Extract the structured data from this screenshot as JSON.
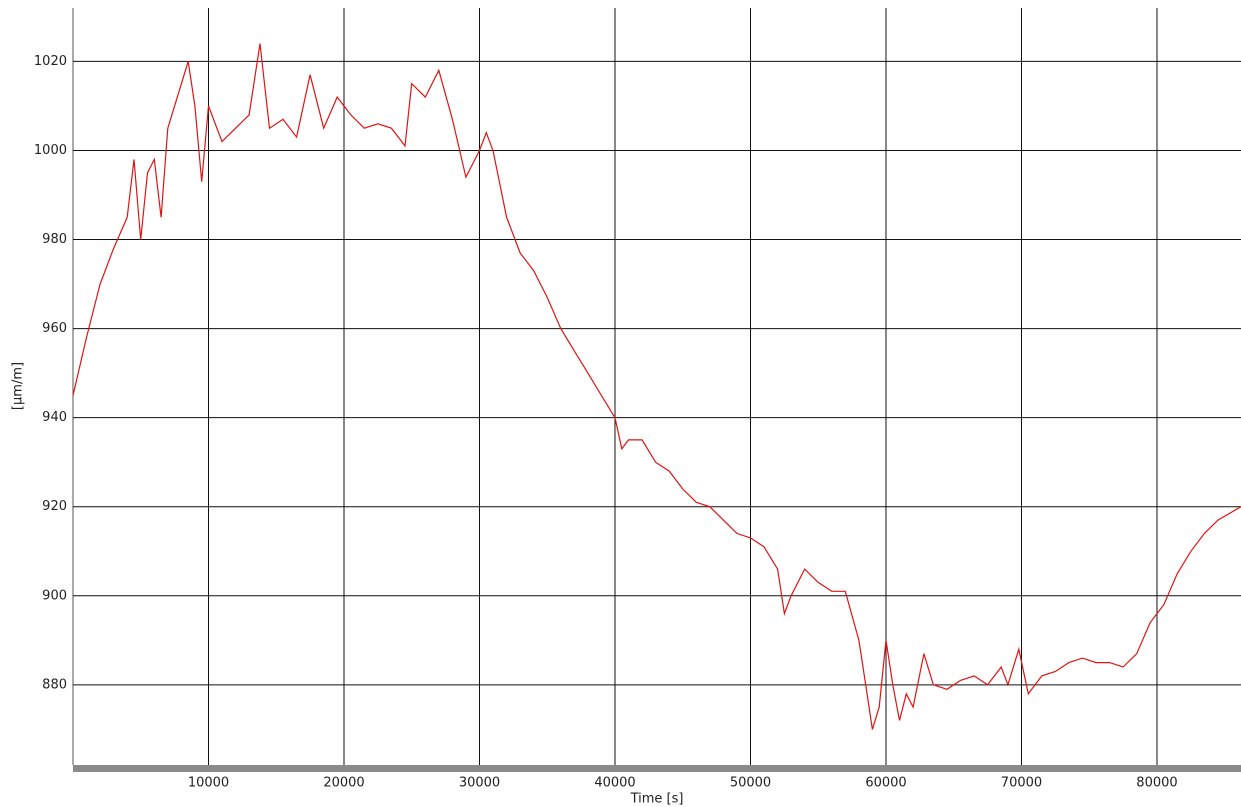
{
  "chart_data": {
    "type": "line",
    "xlabel": "Time [s]",
    "ylabel": "[µm/m]",
    "xlim": [
      0,
      86200
    ],
    "ylim": [
      862,
      1032
    ],
    "xticks": [
      10000,
      20000,
      30000,
      40000,
      50000,
      60000,
      70000,
      80000
    ],
    "yticks": [
      880,
      900,
      920,
      940,
      960,
      980,
      1000,
      1020
    ],
    "grid": true,
    "series": [
      {
        "color": "#e01414",
        "x": [
          0,
          1000,
          2000,
          3000,
          4000,
          4500,
          5000,
          5500,
          6000,
          6500,
          7000,
          8000,
          8500,
          9000,
          9500,
          10000,
          11000,
          12000,
          13000,
          13800,
          14500,
          15500,
          16500,
          17500,
          18500,
          19500,
          20500,
          21500,
          22500,
          23500,
          24500,
          25000,
          26000,
          27000,
          28000,
          29000,
          30000,
          30500,
          31000,
          32000,
          33000,
          34000,
          35000,
          36000,
          37000,
          38000,
          39000,
          40000,
          40500,
          41000,
          42000,
          43000,
          44000,
          45000,
          46000,
          47000,
          48000,
          49000,
          50000,
          51000,
          52000,
          52500,
          53000,
          54000,
          55000,
          56000,
          57000,
          58000,
          58500,
          59000,
          59500,
          60000,
          60500,
          61000,
          61500,
          62000,
          62800,
          63500,
          64500,
          65500,
          66500,
          67500,
          68500,
          69000,
          69800,
          70500,
          71500,
          72500,
          73500,
          74500,
          75500,
          76500,
          77500,
          78500,
          79500,
          80500,
          81500,
          82500,
          83500,
          84500,
          86200
        ],
        "values": [
          945,
          958,
          970,
          978,
          985,
          998,
          980,
          995,
          998,
          985,
          1005,
          1015,
          1020,
          1010,
          993,
          1010,
          1002,
          1005,
          1008,
          1024,
          1005,
          1007,
          1003,
          1017,
          1005,
          1012,
          1008,
          1005,
          1006,
          1005,
          1001,
          1015,
          1012,
          1018,
          1007,
          994,
          1000,
          1004,
          1000,
          985,
          977,
          973,
          967,
          960,
          955,
          950,
          945,
          940,
          933,
          935,
          935,
          930,
          928,
          924,
          921,
          920,
          917,
          914,
          913,
          911,
          906,
          896,
          900,
          906,
          903,
          901,
          901,
          890,
          880,
          870,
          875,
          890,
          880,
          872,
          878,
          875,
          887,
          880,
          879,
          881,
          882,
          880,
          884,
          880,
          888,
          878,
          882,
          883,
          885,
          886,
          885,
          885,
          884,
          887,
          894,
          898,
          905,
          910,
          914,
          917,
          920
        ]
      }
    ]
  }
}
